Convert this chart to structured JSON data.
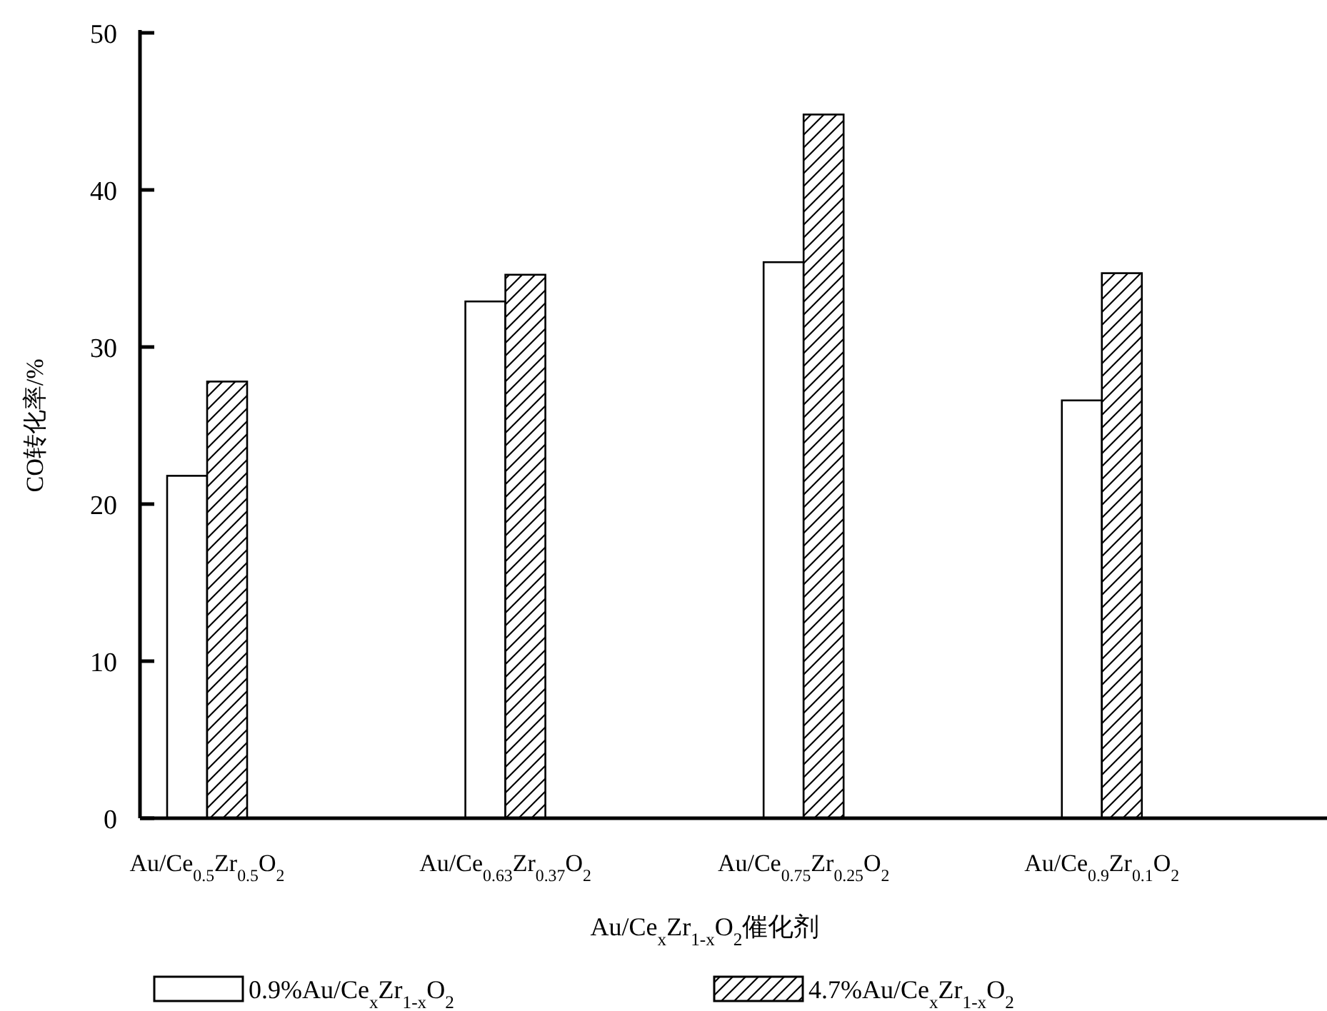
{
  "chart_data": {
    "type": "bar",
    "ylabel": "CO转化率/%",
    "xlabel": "Au/Ce$_{x}$Zr$_{1-x}$O$_{2}$催化剂",
    "categories": [
      "Au/Ce$_{0.5}$Zr$_{0.5}$O$_{2}$",
      "Au/Ce$_{0.63}$Zr$_{0.37}$O$_{2}$",
      "Au/Ce$_{0.75}$Zr$_{0.25}$O$_{2}$",
      "Au/Ce$_{0.9}$Zr$_{0.1}$O$_{2}$"
    ],
    "series": [
      {
        "name": "0.9%Au/Ce$_{x}$Zr$_{1-x}$O$_{2}$",
        "color": "#ffffff",
        "values": [
          21.8,
          32.9,
          35.4,
          26.6
        ]
      },
      {
        "name": "4.7%Au/Ce$_{x}$Zr$_{1-x}$O$_{2}$",
        "color": "#000000",
        "values": [
          27.8,
          34.6,
          44.8,
          34.7
        ]
      }
    ],
    "ylim": [
      0,
      50
    ],
    "yticks": [
      0,
      10,
      20,
      30,
      40,
      50
    ],
    "grid": false,
    "legend": "bottom"
  }
}
